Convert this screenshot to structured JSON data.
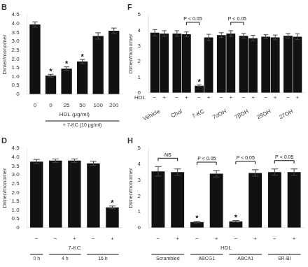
{
  "chart_data": [
    {
      "type": "bar",
      "title": "B",
      "categories": [
        "0",
        "0",
        "25",
        "50",
        "100",
        "200"
      ],
      "values": [
        3.95,
        1.05,
        1.45,
        1.85,
        3.3,
        3.6
      ],
      "errors": [
        0.15,
        0.08,
        0.1,
        0.12,
        0.18,
        0.15
      ],
      "notes": [
        null,
        "*",
        "*",
        "*",
        null,
        null
      ],
      "xlabel": "HDL (μg/ml)",
      "groups": [
        {
          "label": "+ 7-KC (10 μg/ml)",
          "from": 1,
          "to": 5
        }
      ],
      "ylabel": "Dimer/monomer",
      "ylim": [
        0,
        4.5
      ],
      "yticks": [
        0,
        0.5,
        {
          "value": 1,
          "label": "1.0"
        },
        1.5,
        {
          "value": 2,
          "label": "2.0"
        },
        2.5,
        {
          "value": 3,
          "label": "3.0"
        },
        3.5,
        {
          "value": 4,
          "label": "4.0"
        },
        4.5
      ],
      "color": "#111111",
      "grid": false
    },
    {
      "type": "bar",
      "title": "D",
      "categories": [
        "−",
        "−",
        "+",
        "−",
        "+"
      ],
      "values": [
        3.75,
        3.8,
        3.8,
        3.65,
        1.15
      ],
      "errors": [
        0.12,
        0.1,
        0.1,
        0.12,
        0.08
      ],
      "notes": [
        null,
        null,
        null,
        null,
        "*"
      ],
      "xlabel": "7-KC",
      "groups": [
        {
          "label": "0 h",
          "from": 0,
          "to": 0
        },
        {
          "label": "4 h",
          "from": 1,
          "to": 2
        },
        {
          "label": "16 h",
          "from": 3,
          "to": 4
        }
      ],
      "ylabel": "Dimer/monomer",
      "ylim": [
        0,
        4.5
      ],
      "yticks": [
        0,
        0.5,
        {
          "value": 1,
          "label": "1.0"
        },
        1.5,
        {
          "value": 2,
          "label": "2.0"
        },
        2.5,
        {
          "value": 3,
          "label": "3.0"
        },
        3.5,
        {
          "value": 4,
          "label": "4.0"
        },
        4.5
      ],
      "color": "#111111",
      "grid": false
    },
    {
      "type": "bar",
      "title": "F",
      "categories": [
        "Vehicle",
        "Chol",
        "7-KC",
        "7αOH",
        "7βOH",
        "25OH",
        "27OH"
      ],
      "series": [
        {
          "name": "−",
          "color": "#111111",
          "values": [
            3.85,
            3.8,
            0.45,
            3.7,
            3.65,
            3.6,
            3.65
          ],
          "errors": [
            0.2,
            0.18,
            0.05,
            0.15,
            0.15,
            0.12,
            0.15
          ],
          "notes": [
            null,
            null,
            "*",
            null,
            null,
            null,
            null
          ]
        },
        {
          "name": "+",
          "color": "#111111",
          "values": [
            3.8,
            3.75,
            3.55,
            3.8,
            3.5,
            3.55,
            3.6
          ],
          "errors": [
            0.18,
            0.15,
            0.2,
            0.18,
            0.18,
            0.15,
            0.18
          ]
        }
      ],
      "xlabel": "HDL",
      "brackets": [
        {
          "from": 1,
          "to": 2,
          "label": "P < 0.05"
        },
        {
          "from": 3,
          "to": 4,
          "label": "P < 0.05"
        }
      ],
      "ylabel": "Dimer/monomer",
      "ylim": [
        0,
        5
      ],
      "yticks": [
        0,
        1,
        2,
        3,
        4,
        5
      ],
      "grid": false
    },
    {
      "type": "bar",
      "title": "H",
      "categories": [
        "−",
        "+",
        "−",
        "+",
        "−",
        "+",
        "−",
        "+"
      ],
      "values": [
        3.55,
        3.5,
        0.35,
        3.4,
        0.4,
        3.45,
        3.5,
        3.5
      ],
      "errors": [
        0.3,
        0.2,
        0.05,
        0.2,
        0.05,
        0.2,
        0.2,
        0.2
      ],
      "notes": [
        null,
        null,
        "*",
        null,
        "*",
        null,
        null,
        null
      ],
      "xlabel": "HDL",
      "groups": [
        {
          "label": "Scrambled",
          "from": 0,
          "to": 1
        },
        {
          "label": "ABCG1",
          "from": 2,
          "to": 3
        },
        {
          "label": "ABCA1",
          "from": 4,
          "to": 5
        },
        {
          "label": "SR-BI",
          "from": 6,
          "to": 7
        }
      ],
      "brackets": [
        {
          "from": 0,
          "to": 1,
          "label": "NS"
        },
        {
          "from": 2,
          "to": 3,
          "label": "P < 0.05"
        },
        {
          "from": 4,
          "to": 5,
          "label": "P < 0.05"
        },
        {
          "from": 6,
          "to": 7,
          "label": "P < 0.05"
        }
      ],
      "ylabel": "Dimer/monomer",
      "ylim": [
        0,
        5
      ],
      "yticks": [
        0,
        1,
        2,
        3,
        4,
        5
      ],
      "color": "#111111",
      "grid": false
    }
  ]
}
